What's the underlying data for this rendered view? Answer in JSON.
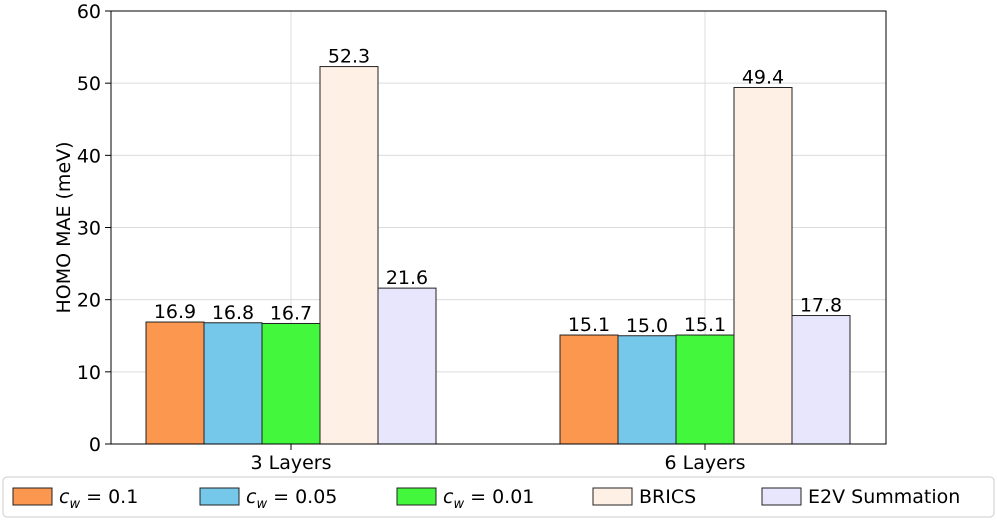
{
  "chart_data": {
    "type": "bar",
    "categories": [
      "3 Layers",
      "6 Layers"
    ],
    "ylabel": "HOMO MAE (meV)",
    "ylim": [
      0,
      60
    ],
    "yticks": [
      0,
      10,
      20,
      30,
      40,
      50,
      60
    ],
    "grid": true,
    "legend_position": "bottom",
    "series": [
      {
        "name_base": "c",
        "name_sub": "w",
        "name_rest": " = 0.1",
        "color": "#FB974F",
        "values": [
          16.9,
          15.1
        ],
        "labels": [
          "16.9",
          "15.1"
        ]
      },
      {
        "name_base": "c",
        "name_sub": "w",
        "name_rest": " = 0.05",
        "color": "#76C8EB",
        "values": [
          16.8,
          15.0
        ],
        "labels": [
          "16.8",
          "15.0"
        ]
      },
      {
        "name_base": "c",
        "name_sub": "w",
        "name_rest": " = 0.01",
        "color": "#42F73C",
        "values": [
          16.7,
          15.1
        ],
        "labels": [
          "16.7",
          "15.1"
        ]
      },
      {
        "name": "BRICS",
        "color": "#FFF0E5",
        "values": [
          52.3,
          49.4
        ],
        "labels": [
          "52.3",
          "49.4"
        ]
      },
      {
        "name": "E2V Summation",
        "color": "#E8E6FD",
        "values": [
          21.6,
          17.8
        ],
        "labels": [
          "21.6",
          "17.8"
        ]
      }
    ]
  }
}
